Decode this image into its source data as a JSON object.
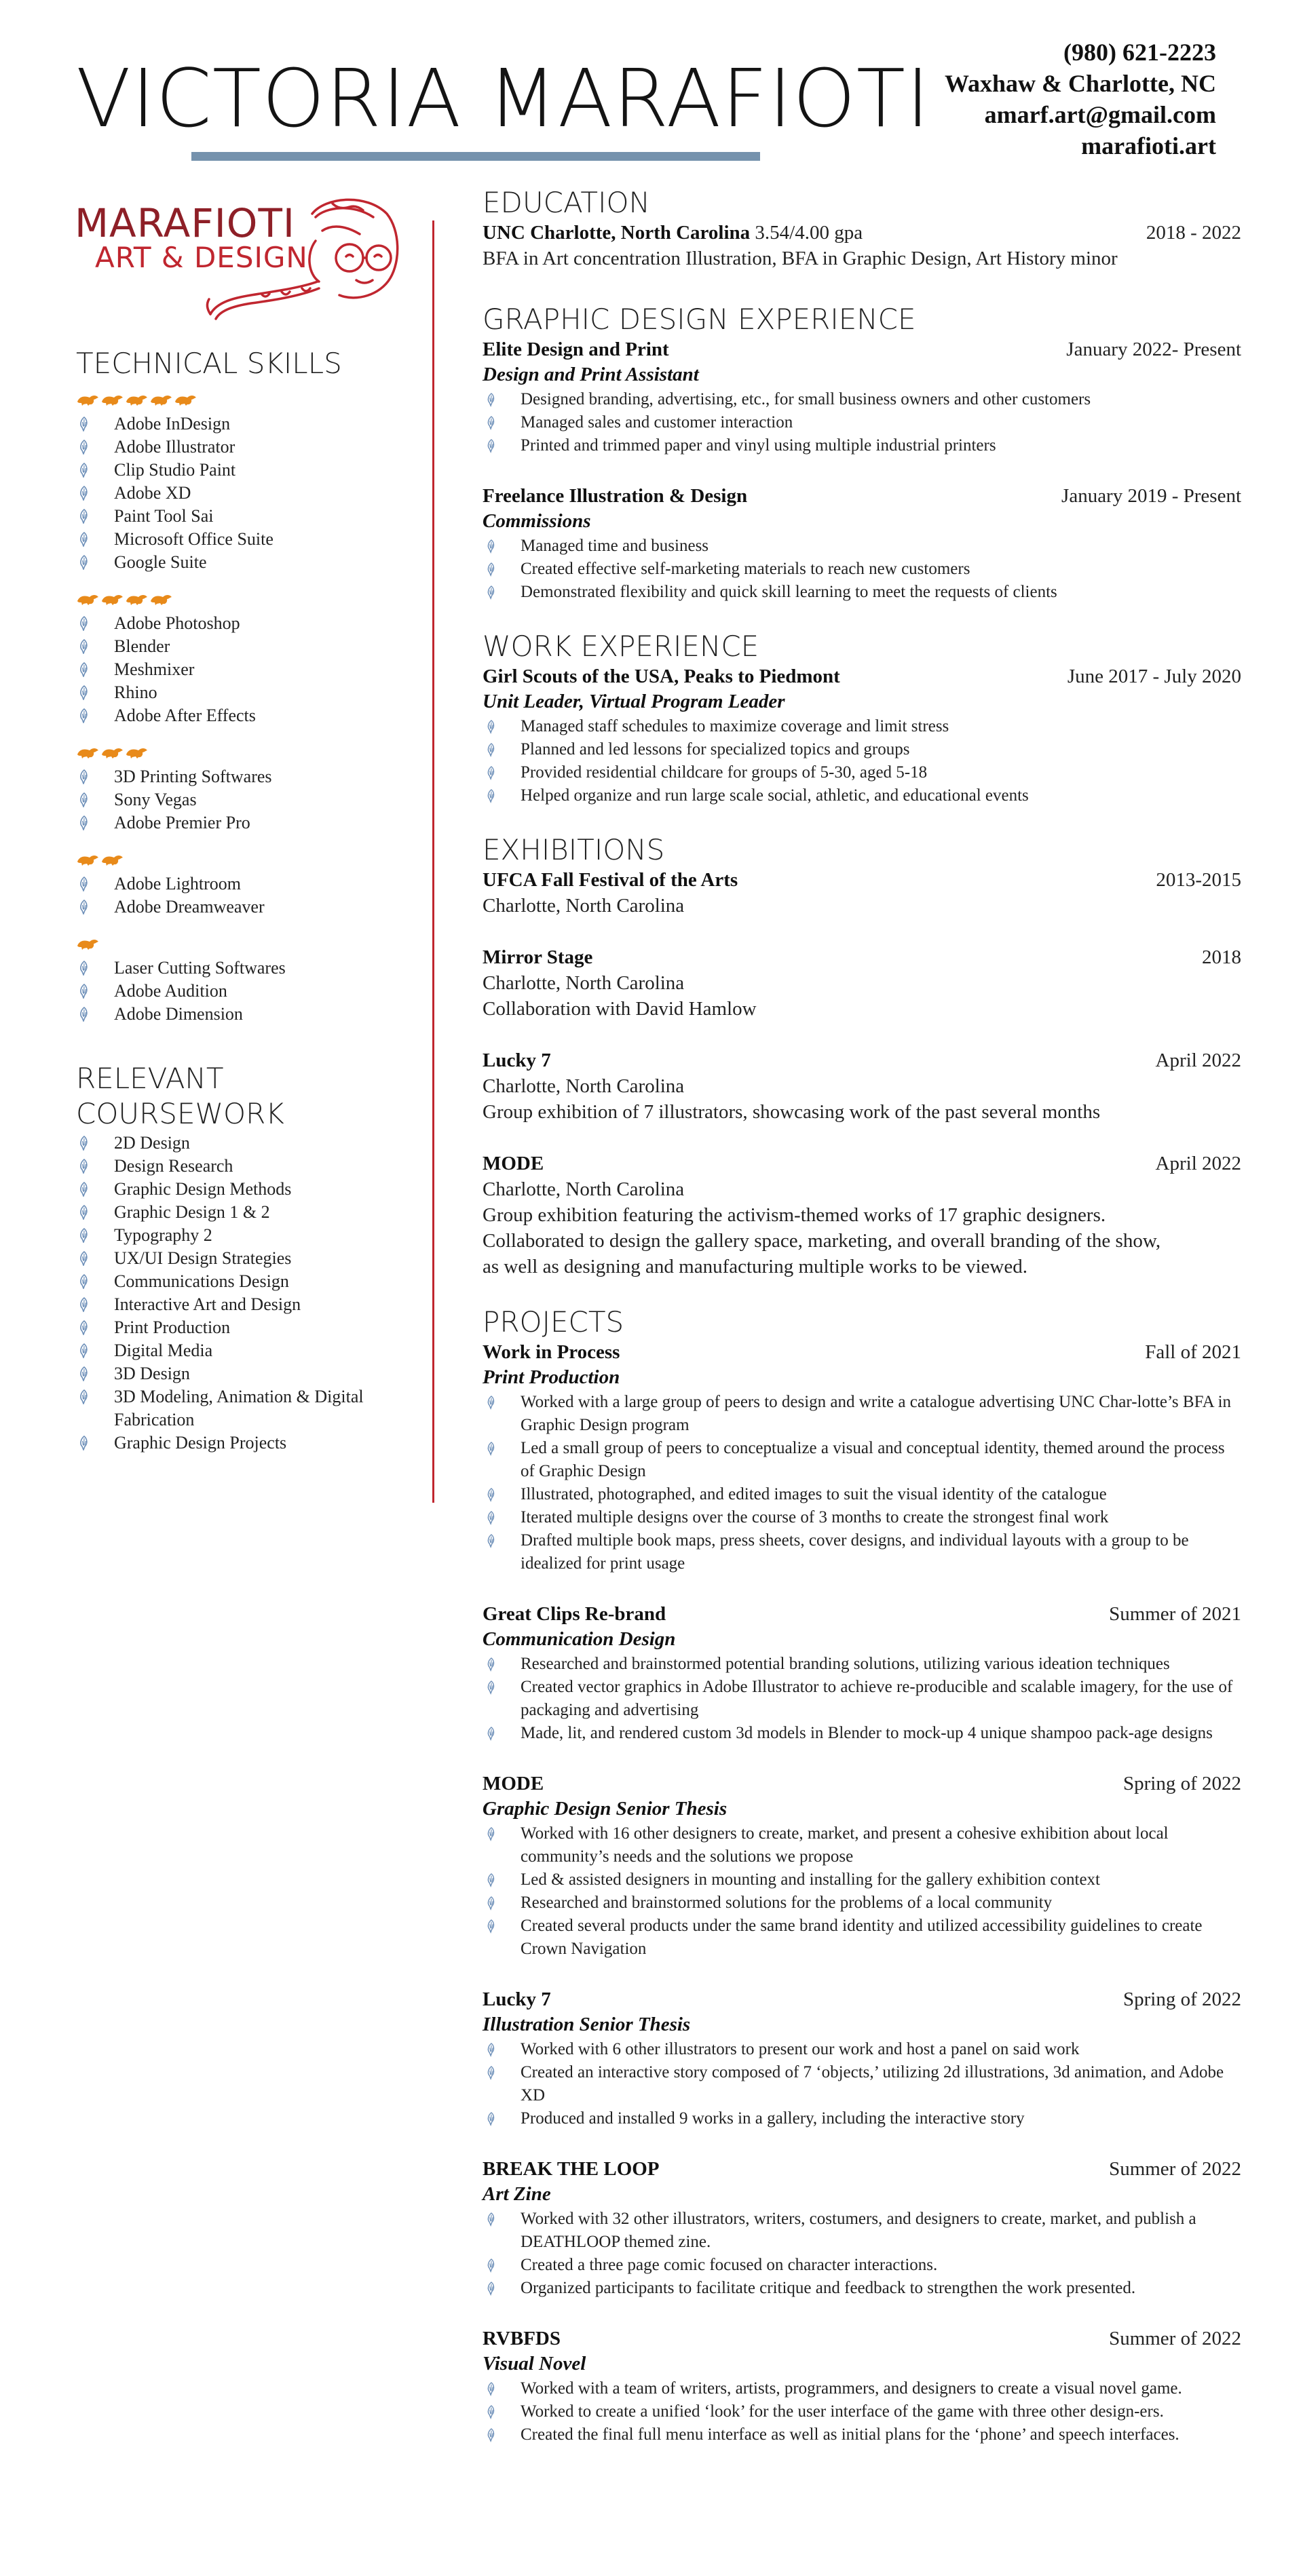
{
  "header": {
    "name": "VICTORIA MARAFIOTI",
    "phone": "(980) 621-2223",
    "location": "Waxhaw & Charlotte, NC",
    "email": "amarf.art@gmail.com",
    "website": "marafioti.art"
  },
  "logo": {
    "line1": "MARAFIOTI",
    "line2": "ART & DESIGN"
  },
  "colors": {
    "accent_red": "#c0262f",
    "accent_blue": "#7592ad",
    "accent_orange": "#e88a1a",
    "bullet_blue": "#6d8fb8"
  },
  "skills": {
    "title": "TECHNICAL SKILLS",
    "groups": [
      {
        "level": 5,
        "items": [
          "Adobe InDesign",
          "Adobe Illustrator",
          "Clip Studio Paint",
          "Adobe XD",
          "Paint Tool Sai",
          "Microsoft Office Suite",
          "Google Suite"
        ]
      },
      {
        "level": 4,
        "items": [
          "Adobe Photoshop",
          "Blender",
          "Meshmixer",
          "Rhino",
          "Adobe After Effects"
        ]
      },
      {
        "level": 3,
        "items": [
          "3D Printing Softwares",
          "Sony Vegas",
          "Adobe Premier Pro"
        ]
      },
      {
        "level": 2,
        "items": [
          "Adobe Lightroom",
          "Adobe Dreamweaver"
        ]
      },
      {
        "level": 1,
        "items": [
          "Laser Cutting Softwares",
          "Adobe Audition",
          "Adobe Dimension"
        ]
      }
    ]
  },
  "coursework": {
    "title_line1": "RELEVANT",
    "title_line2": "COURSEWORK",
    "items": [
      "2D Design",
      "Design Research",
      "Graphic Design Methods",
      "Graphic Design 1 & 2",
      "Typography 2",
      "UX/UI Design Strategies",
      "Communications Design",
      "Interactive Art and Design",
      "Print Production",
      "Digital Media",
      "3D Design",
      "3D Modeling, Animation & Digital Fabrication",
      "Graphic Design Projects"
    ]
  },
  "education": {
    "title": "EDUCATION",
    "school": "UNC Charlotte, North Carolina",
    "gpa": "3.54/4.00 gpa",
    "dates": "2018 - 2022",
    "degree": "BFA in Art concentration Illustration, BFA in Graphic Design, Art History minor"
  },
  "gd_experience": {
    "title": "GRAPHIC DESIGN EXPERIENCE",
    "entries": [
      {
        "org": "Elite Design and Print",
        "dates": "January 2022- Present",
        "role": "Design and Print Assistant",
        "bullets": [
          "Designed branding, advertising, etc., for small business owners and other customers",
          "Managed sales and customer interaction",
          "Printed and trimmed paper and vinyl using multiple industrial printers"
        ]
      },
      {
        "org": "Freelance Illustration & Design",
        "dates": "January 2019 - Present",
        "role": "Commissions",
        "bullets": [
          "Managed time and business",
          "Created effective self-marketing materials to reach new customers",
          "Demonstrated flexibility and quick skill learning to meet the requests of clients"
        ]
      }
    ]
  },
  "work_experience": {
    "title": "WORK EXPERIENCE",
    "org": "Girl Scouts of the USA, Peaks to Piedmont",
    "dates": "June 2017 - July 2020",
    "role": "Unit Leader, Virtual Program Leader",
    "bullets": [
      "Managed staff schedules to maximize coverage and limit stress",
      "Planned and led lessons for specialized topics and groups",
      "Provided residential childcare for groups of 5-30, aged 5-18",
      "Helped organize and run large scale social, athletic, and educational events"
    ]
  },
  "exhibitions": {
    "title": "EXHIBITIONS",
    "entries": [
      {
        "name": "UFCA Fall Festival of the Arts",
        "dates": "2013-2015",
        "lines": [
          "Charlotte, North Carolina"
        ]
      },
      {
        "name": "Mirror Stage",
        "dates": "2018",
        "lines": [
          "Charlotte, North Carolina",
          "Collaboration with David Hamlow"
        ]
      },
      {
        "name": "Lucky 7",
        "dates": "April 2022",
        "lines": [
          "Charlotte, North Carolina",
          "Group exhibition of 7 illustrators, showcasing work of the past several months"
        ]
      },
      {
        "name": "MODE",
        "dates": "April 2022",
        "lines": [
          "Charlotte, North Carolina",
          "Group exhibition featuring the activism-themed works of 17 graphic designers.",
          "Collaborated to design the gallery space, marketing, and overall branding of the show,",
          "as well as designing and manufacturing multiple works to be viewed."
        ]
      }
    ]
  },
  "projects": {
    "title": "PROJECTS",
    "entries": [
      {
        "name": "Work in Process",
        "dates": "Fall of 2021",
        "role": "Print Production",
        "bullets": [
          "Worked with a large group of peers to design and write a catalogue advertising UNC Char-lotte’s BFA in Graphic Design program",
          "Led a small group of peers to conceptualize a visual and conceptual identity, themed around the process of Graphic Design",
          "Illustrated, photographed, and edited images to suit the visual identity of the catalogue",
          "Iterated multiple designs over the course of 3 months to create the strongest final work",
          "Drafted multiple book maps, press sheets, cover designs, and individual layouts with a group to be idealized for print usage"
        ]
      },
      {
        "name": "Great Clips Re-brand",
        "dates": "Summer of 2021",
        "role": "Communication Design",
        "bullets": [
          "Researched and brainstormed potential branding solutions, utilizing various ideation techniques",
          "Created vector graphics in Adobe Illustrator to achieve re-producible and scalable imagery, for the use of packaging and advertising",
          "Made, lit, and rendered custom 3d models in Blender to mock-up 4 unique shampoo pack-age designs"
        ]
      },
      {
        "name": "MODE",
        "dates": "Spring of 2022",
        "role": "Graphic Design Senior Thesis",
        "bullets": [
          "Worked with 16 other designers to create, market, and present a cohesive exhibition about local community’s needs and the solutions we propose",
          "Led & assisted designers in mounting and installing for the gallery exhibition context",
          "Researched and brainstormed solutions for the problems of a local community",
          "Created several products under the same brand identity and utilized accessibility guidelines to create Crown Navigation"
        ]
      },
      {
        "name": "Lucky 7",
        "dates": "Spring of 2022",
        "role": "Illustration Senior Thesis",
        "bullets": [
          "Worked with 6 other illustrators to present our work and host a panel on said work",
          "Created an interactive story composed of 7 ‘objects,’ utilizing 2d illustrations, 3d animation, and Adobe XD",
          "Produced and installed 9 works in a gallery, including the interactive story"
        ]
      },
      {
        "name": "BREAK THE LOOP",
        "dates": "Summer of 2022",
        "role": "Art Zine",
        "bullets": [
          "Worked with 32 other illustrators, writers, costumers, and designers to create, market, and publish a DEATHLOOP themed zine.",
          "Created a three page comic focused on character interactions.",
          "Organized participants to facilitate critique and feedback to strengthen the work presented."
        ]
      },
      {
        "name": "RVBFDS",
        "dates": "Summer of 2022",
        "role": "Visual Novel",
        "bullets": [
          "Worked with a team of writers, artists, programmers, and designers to create a visual novel game.",
          "Worked to create a unified ‘look’ for the user interface of the game with three other design-ers.",
          "Created the final full menu interface as well as initial plans for the ‘phone’ and speech interfaces."
        ]
      }
    ]
  }
}
